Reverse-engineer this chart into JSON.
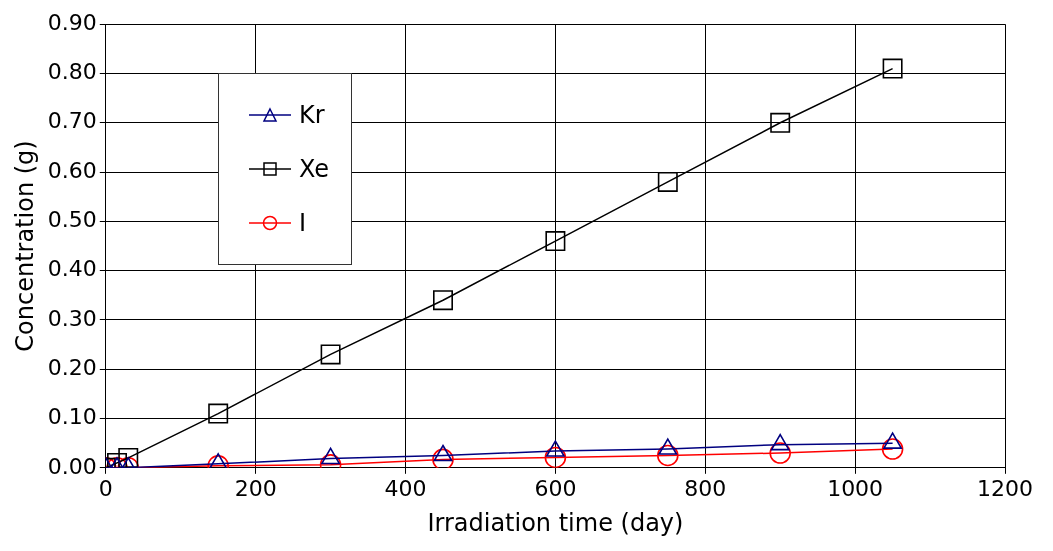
{
  "chart_data": {
    "type": "line",
    "xlabel": "Irradiation time (day)",
    "ylabel": "Concentration (g)",
    "xlim": [
      0,
      1200
    ],
    "xticks": [
      0,
      200,
      400,
      600,
      800,
      1000,
      1200
    ],
    "ylim": [
      0,
      0.9
    ],
    "yticks": [
      {
        "value": 0,
        "label": "0.00"
      },
      {
        "value": 0.1,
        "label": "0.10"
      },
      {
        "value": 0.2,
        "label": "0.20"
      },
      {
        "value": 0.3,
        "label": "0.30"
      },
      {
        "value": 0.4,
        "label": "0.40"
      },
      {
        "value": 0.5,
        "label": "0.50"
      },
      {
        "value": 0.6,
        "label": "0.60"
      },
      {
        "value": 0.7,
        "label": "0.70"
      },
      {
        "value": 0.8,
        "label": "0.80"
      },
      {
        "value": 0.9,
        "label": "0.90"
      }
    ],
    "grid": true,
    "legend": "top left",
    "line_style": "solid",
    "x": [
      0,
      15,
      30,
      150,
      300,
      450,
      600,
      750,
      900,
      1050
    ],
    "series": [
      {
        "name": "Kr",
        "color": "#000080",
        "marker": "triangle",
        "values": [
          0,
          0,
          0,
          0.008,
          0.019,
          0.025,
          0.034,
          0.038,
          0.047,
          0.05
        ]
      },
      {
        "name": "Xe",
        "color": "#000000",
        "marker": "square",
        "values": [
          0,
          0.01,
          0.02,
          0.11,
          0.23,
          0.34,
          0.46,
          0.58,
          0.7,
          0.81
        ]
      },
      {
        "name": "I",
        "color": "#ff0000",
        "marker": "circle",
        "values": [
          0,
          0,
          0,
          0.004,
          0.006,
          0.017,
          0.021,
          0.025,
          0.03,
          0.038
        ]
      }
    ]
  }
}
